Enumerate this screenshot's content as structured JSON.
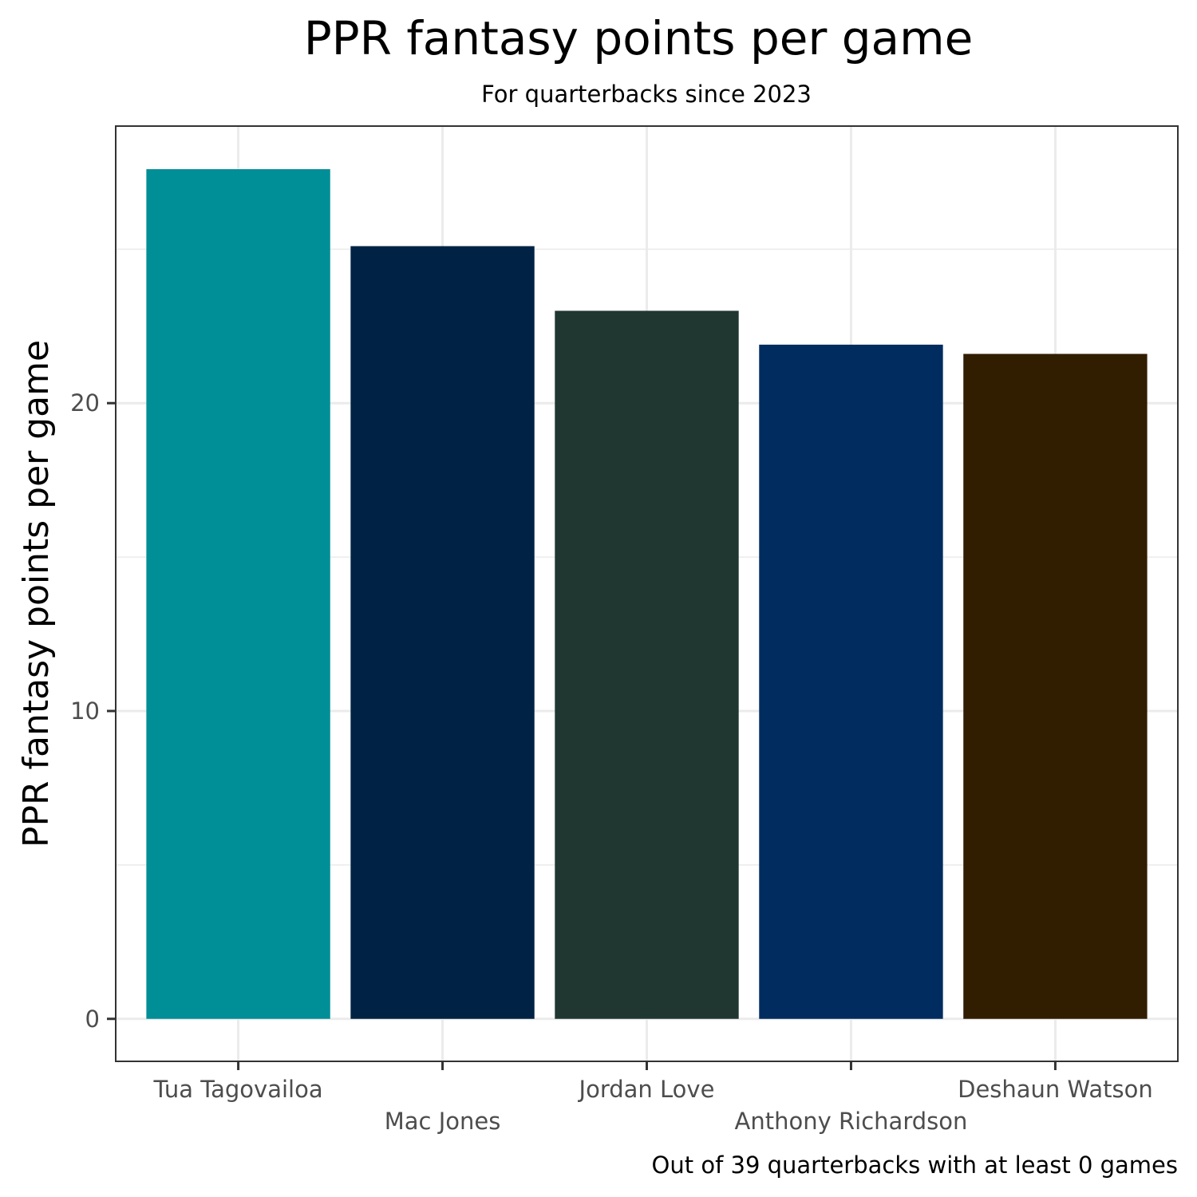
{
  "chart_data": {
    "type": "bar",
    "title": "PPR fantasy points per game",
    "subtitle": "For quarterbacks since 2023",
    "xlabel": "",
    "ylabel": "PPR fantasy points per game",
    "caption": "Out of 39 quarterbacks with at least 0 games",
    "categories": [
      "Tua Tagovailoa",
      "Mac Jones",
      "Jordan Love",
      "Anthony Richardson",
      "Deshaun Watson"
    ],
    "values": [
      27.6,
      25.1,
      23.0,
      21.9,
      21.6
    ],
    "colors": [
      "#008E97",
      "#002244",
      "#203731",
      "#002C5F",
      "#311D00"
    ],
    "y_ticks": [
      0,
      10,
      20
    ],
    "ylim": [
      -1.38,
      29.0
    ],
    "grid": true,
    "legend": "none"
  }
}
